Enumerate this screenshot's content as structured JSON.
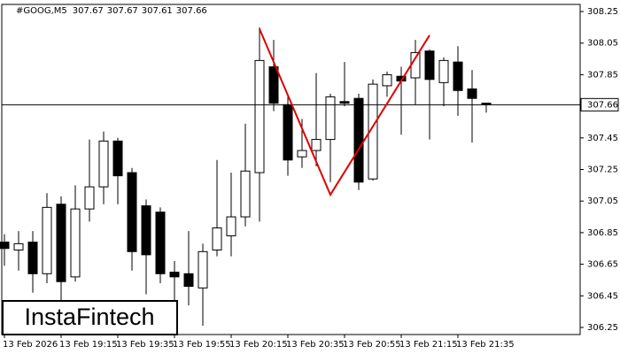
{
  "chart_data": {
    "type": "candlestick",
    "title": "#GOOG,M5",
    "categories": [
      "13 Feb 2026",
      null,
      null,
      null,
      "13 Feb 19:15",
      null,
      null,
      null,
      "13 Feb 19:35",
      null,
      null,
      null,
      "13 Feb 19:55",
      null,
      null,
      null,
      "13 Feb 20:15",
      null,
      null,
      null,
      "13 Feb 20:35",
      null,
      null,
      null,
      "13 Feb 20:55",
      null,
      null,
      null,
      "13 Feb 21:15",
      null,
      null,
      null,
      "13 Feb 21:35",
      null,
      null
    ],
    "open": [
      306.79,
      306.74,
      306.79,
      306.59,
      307.03,
      306.57,
      307.0,
      307.14,
      307.43,
      307.23,
      307.02,
      306.98,
      306.6,
      306.59,
      306.5,
      306.74,
      306.83,
      306.95,
      307.23,
      307.9,
      307.66,
      307.33,
      307.37,
      307.44,
      307.68,
      307.7,
      307.19,
      307.78,
      307.84,
      307.83,
      308.0,
      307.8,
      307.93,
      307.76,
      307.67
    ],
    "high": [
      306.84,
      306.86,
      306.86,
      307.1,
      307.08,
      307.15,
      307.44,
      307.49,
      307.45,
      307.26,
      307.06,
      307.01,
      306.67,
      306.86,
      306.78,
      307.31,
      307.23,
      307.54,
      308.15,
      308.07,
      307.71,
      307.57,
      307.86,
      307.73,
      307.93,
      307.73,
      307.82,
      307.87,
      307.9,
      308.07,
      308.01,
      307.96,
      308.03,
      307.88,
      307.67
    ],
    "low": [
      306.64,
      306.61,
      306.47,
      306.53,
      306.42,
      306.54,
      306.92,
      307.03,
      307.03,
      306.61,
      306.46,
      306.53,
      306.34,
      306.39,
      306.26,
      306.7,
      306.7,
      306.89,
      306.92,
      307.62,
      307.21,
      307.26,
      307.27,
      307.17,
      307.65,
      307.12,
      307.18,
      307.71,
      307.47,
      307.66,
      307.44,
      307.65,
      307.59,
      307.42,
      307.61
    ],
    "close": [
      306.75,
      306.78,
      306.59,
      307.01,
      306.54,
      307.0,
      307.14,
      307.43,
      307.21,
      306.73,
      306.71,
      306.59,
      306.57,
      306.51,
      306.73,
      306.88,
      306.95,
      307.24,
      307.94,
      307.67,
      307.31,
      307.37,
      307.44,
      307.71,
      307.67,
      307.17,
      307.79,
      307.85,
      307.81,
      307.99,
      307.82,
      307.94,
      307.75,
      307.7,
      307.66
    ],
    "up_color": "#ffffff",
    "down_color": "#000000",
    "ylim": [
      306.205,
      308.295
    ],
    "yticks": [
      306.25,
      306.45,
      306.65,
      306.85,
      307.05,
      307.25,
      307.45,
      307.85,
      308.05,
      308.25
    ],
    "pattern": {
      "color": "#e00000",
      "points": [
        {
          "index": 18,
          "value": 308.14
        },
        {
          "index": 23,
          "value": 307.09
        },
        {
          "index": 30,
          "value": 308.1
        }
      ]
    },
    "watermark": "InstaFintech"
  }
}
